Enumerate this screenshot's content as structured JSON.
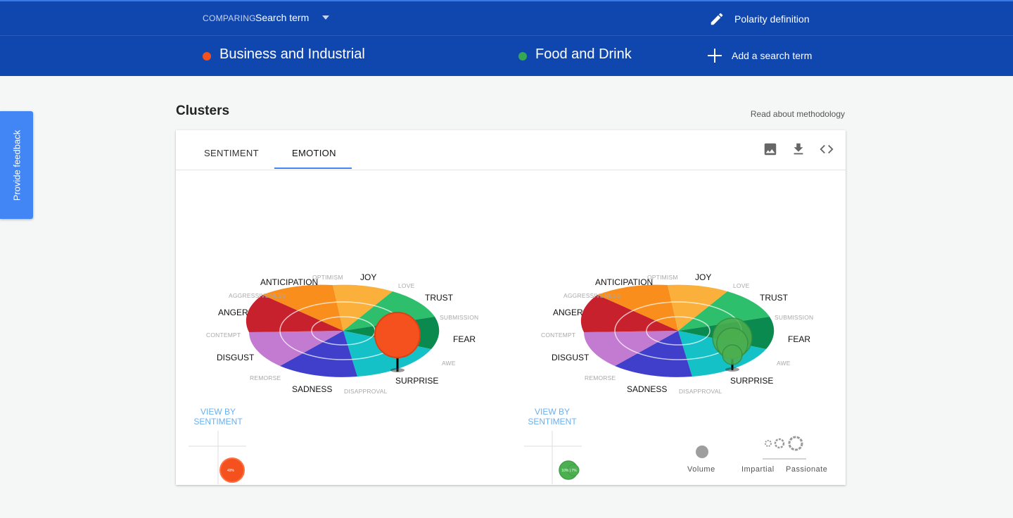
{
  "header": {
    "comparing_label": "COMPARING",
    "comparing_value": "Search term",
    "polarity_label": "Polarity definition",
    "add_term_label": "Add a search term",
    "terms": [
      {
        "label": "Business and Industrial",
        "color": "#f4511e"
      },
      {
        "label": "Food and Drink",
        "color": "#34a853"
      }
    ]
  },
  "feedback_label": "Provide feedback",
  "section": {
    "title": "Clusters",
    "methodology_link": "Read about methodology"
  },
  "tabs": [
    {
      "label": "SENTIMENT",
      "active": false
    },
    {
      "label": "EMOTION",
      "active": true
    }
  ],
  "toolbar_icons": [
    "image-icon",
    "download-icon",
    "code-icon"
  ],
  "wheel": {
    "primary_labels": [
      "ANTICIPATION",
      "JOY",
      "TRUST",
      "ANGER",
      "FEAR",
      "DISGUST",
      "SADNESS",
      "SURPRISE"
    ],
    "secondary_labels": [
      "OPTIMISM",
      "LOVE",
      "AGGRESSIVENESS",
      "SUBMISSION",
      "CONTEMPT",
      "AWE",
      "REMORSE",
      "DISAPPROVAL"
    ],
    "colors": {
      "joy": "#fbb03b",
      "trust": "#2dbf6b",
      "fear": "#0a8a4f",
      "surprise": "#13c1c6",
      "sadness": "#3f3fcc",
      "disgust": "#c27bd0",
      "anger": "#c7212e",
      "anticipation": "#f98e1c"
    }
  },
  "view_by": "VIEW BY SENTIMENT",
  "mini_values": [
    {
      "text": "49%"
    },
    {
      "text": "10% | 7%"
    }
  ],
  "legend": {
    "volume": "Volume",
    "impartial": "Impartial",
    "passionate": "Passionate"
  }
}
